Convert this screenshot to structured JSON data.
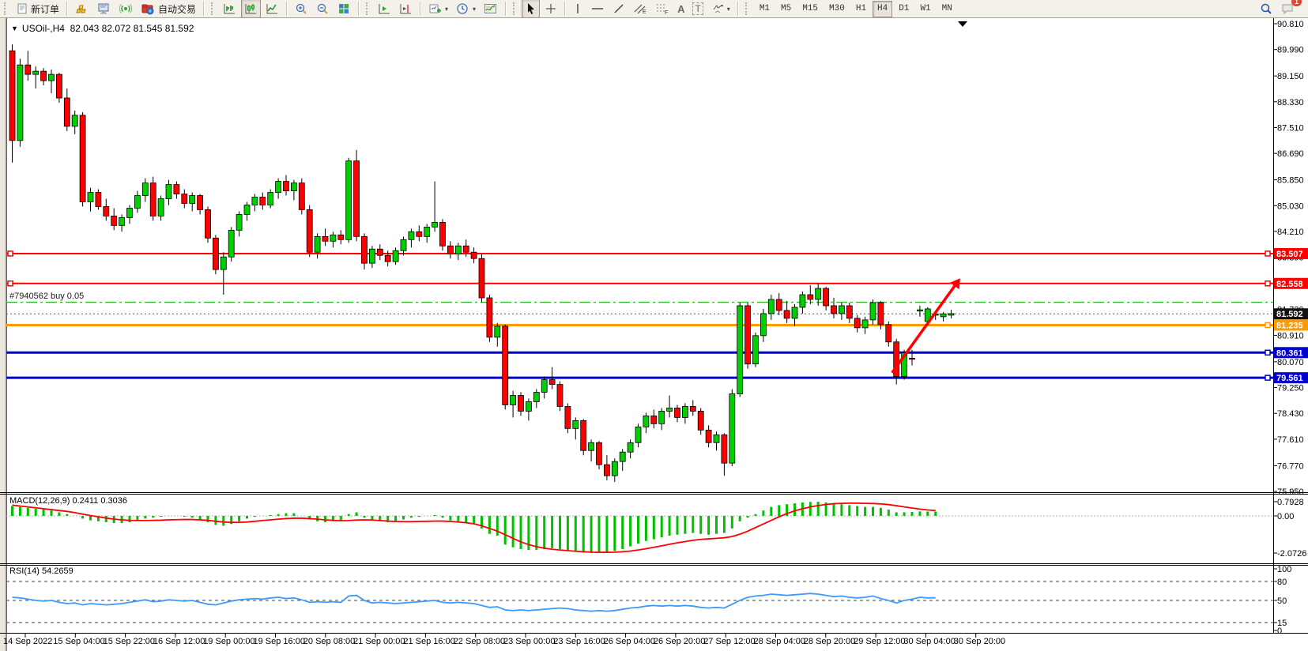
{
  "toolbar": {
    "new_order_label": "新订单",
    "autotrade_label": "自动交易",
    "timeframes": [
      "M1",
      "M5",
      "M15",
      "M30",
      "H1",
      "H4",
      "D1",
      "W1",
      "MN"
    ],
    "active_timeframe": "H4",
    "notification_badge": "1",
    "channel_letter": "E",
    "fibo_letter": "F",
    "text_tool_label": "A",
    "label_tool_label": "T"
  },
  "chart": {
    "symbol_period": "USOil-,H4",
    "ohlc_text": "82.043 82.072 81.545 81.592",
    "trade_label": "#7940562 buy 0.05",
    "macd_label": "MACD(12,26,9) 0.2411 0.3036",
    "rsi_label": "RSI(14) 54.2659",
    "shift_marker": "▼"
  },
  "chart_data": [
    {
      "type": "candlestick",
      "title": "USOil-,H4",
      "last_ohlc": {
        "open": 82.043,
        "high": 82.072,
        "low": 81.545,
        "close": 81.592
      },
      "ylim": [
        75.53,
        91.0
      ],
      "yticks": [
        "90.810",
        "89.990",
        "89.150",
        "88.330",
        "87.510",
        "86.690",
        "85.850",
        "85.030",
        "84.210",
        "83.390",
        "81.730",
        "80.910",
        "80.070",
        "79.250",
        "78.430",
        "77.610",
        "76.770",
        "75.950"
      ],
      "price_labels": [
        {
          "text": "83.507",
          "bg": "#ff0000"
        },
        {
          "text": "82.558",
          "bg": "#ff0000"
        },
        {
          "text": "81.592",
          "bg": "#111111"
        },
        {
          "text": "81.235",
          "bg": "#ff9900"
        },
        {
          "text": "80.361",
          "bg": "#0000cc"
        },
        {
          "text": "79.561",
          "bg": "#0000cc"
        }
      ],
      "hlines": [
        {
          "price": 83.507,
          "color": "#ff0000",
          "w": 2,
          "sq_left": true,
          "sq_right": true
        },
        {
          "price": 82.558,
          "color": "#ff0000",
          "w": 2,
          "sq_left": true,
          "sq_right": true
        },
        {
          "price": 81.235,
          "color": "#ff9900",
          "w": 3,
          "sq_left": false,
          "sq_right": true
        },
        {
          "price": 80.361,
          "color": "#0000cc",
          "w": 3,
          "sq_left": false,
          "sq_right": true
        },
        {
          "price": 79.561,
          "color": "#0000cc",
          "w": 3,
          "sq_left": false,
          "sq_right": true
        }
      ],
      "bid_line": {
        "price": 81.592,
        "color": "#555555",
        "style": "dash"
      },
      "buy_line": {
        "price": 81.96,
        "color": "#2db52d",
        "style": "dashdot",
        "label": "#7940562 buy 0.05"
      },
      "up_color": "#00d000",
      "down_color": "#ff0000",
      "outline_color": "#000000",
      "arrow": {
        "from_i": 112.8,
        "from_p": 79.72,
        "to_i": 121.5,
        "to_p": 82.72,
        "color": "#ff0000"
      },
      "x_labels": [
        "14 Sep 2022",
        "15 Sep 04:00",
        "15 Sep 22:00",
        "16 Sep 12:00",
        "19 Sep 00:00",
        "19 Sep 16:00",
        "20 Sep 08:00",
        "21 Sep 00:00",
        "21 Sep 16:00",
        "22 Sep 08:00",
        "23 Sep 00:00",
        "23 Sep 16:00",
        "26 Sep 04:00",
        "26 Sep 20:00",
        "27 Sep 12:00",
        "28 Sep 04:00",
        "28 Sep 20:00",
        "29 Sep 12:00",
        "30 Sep 04:00",
        "30 Sep 20:00"
      ],
      "candles": [
        [
          89.95,
          90.15,
          86.4,
          87.1
        ],
        [
          87.1,
          89.7,
          86.9,
          89.5
        ],
        [
          89.5,
          89.95,
          89.0,
          89.2
        ],
        [
          89.2,
          89.45,
          88.75,
          89.3
        ],
        [
          89.3,
          89.4,
          88.85,
          89.0
        ],
        [
          89.0,
          89.35,
          88.6,
          89.2
        ],
        [
          89.2,
          89.25,
          88.3,
          88.45
        ],
        [
          88.45,
          88.75,
          87.4,
          87.55
        ],
        [
          87.55,
          88.05,
          87.3,
          87.9
        ],
        [
          87.9,
          88.0,
          85.0,
          85.15
        ],
        [
          85.15,
          85.6,
          84.85,
          85.45
        ],
        [
          85.45,
          85.55,
          84.9,
          85.0
        ],
        [
          85.0,
          85.25,
          84.55,
          84.7
        ],
        [
          84.7,
          84.95,
          84.25,
          84.4
        ],
        [
          84.4,
          84.75,
          84.2,
          84.65
        ],
        [
          84.65,
          85.05,
          84.45,
          84.95
        ],
        [
          84.95,
          85.5,
          84.8,
          85.35
        ],
        [
          85.35,
          85.9,
          85.15,
          85.75
        ],
        [
          85.75,
          85.95,
          84.55,
          84.7
        ],
        [
          84.7,
          85.35,
          84.55,
          85.25
        ],
        [
          85.25,
          85.85,
          85.05,
          85.7
        ],
        [
          85.7,
          85.8,
          85.25,
          85.4
        ],
        [
          85.4,
          85.55,
          84.95,
          85.1
        ],
        [
          85.1,
          85.45,
          84.85,
          85.35
        ],
        [
          85.35,
          85.4,
          84.75,
          84.9
        ],
        [
          84.9,
          85.0,
          83.85,
          84.0
        ],
        [
          84.0,
          84.1,
          82.85,
          83.0
        ],
        [
          83.0,
          83.55,
          82.2,
          83.4
        ],
        [
          83.4,
          84.35,
          83.25,
          84.25
        ],
        [
          84.25,
          84.85,
          84.05,
          84.75
        ],
        [
          84.75,
          85.15,
          84.55,
          85.05
        ],
        [
          85.05,
          85.4,
          84.85,
          85.3
        ],
        [
          85.3,
          85.45,
          84.9,
          85.05
        ],
        [
          85.05,
          85.55,
          84.95,
          85.45
        ],
        [
          85.45,
          85.9,
          85.25,
          85.8
        ],
        [
          85.8,
          86.0,
          85.35,
          85.5
        ],
        [
          85.5,
          85.85,
          85.2,
          85.75
        ],
        [
          85.75,
          85.9,
          84.75,
          84.9
        ],
        [
          84.9,
          85.05,
          83.4,
          83.55
        ],
        [
          83.55,
          84.15,
          83.35,
          84.05
        ],
        [
          84.05,
          84.3,
          83.75,
          83.9
        ],
        [
          83.9,
          84.2,
          83.7,
          84.1
        ],
        [
          84.1,
          84.25,
          83.8,
          83.95
        ],
        [
          83.95,
          86.55,
          83.85,
          86.45
        ],
        [
          86.45,
          86.8,
          83.9,
          84.05
        ],
        [
          84.05,
          84.15,
          83.0,
          83.2
        ],
        [
          83.2,
          83.75,
          83.05,
          83.65
        ],
        [
          83.65,
          83.8,
          83.3,
          83.45
        ],
        [
          83.45,
          83.6,
          83.1,
          83.25
        ],
        [
          83.25,
          83.7,
          83.15,
          83.6
        ],
        [
          83.6,
          84.05,
          83.45,
          83.95
        ],
        [
          83.95,
          84.3,
          83.7,
          84.2
        ],
        [
          84.2,
          84.4,
          83.9,
          84.05
        ],
        [
          84.05,
          84.45,
          83.85,
          84.35
        ],
        [
          84.35,
          85.8,
          84.2,
          84.5
        ],
        [
          84.5,
          84.6,
          83.6,
          83.75
        ],
        [
          83.75,
          83.9,
          83.35,
          83.5
        ],
        [
          83.5,
          83.85,
          83.3,
          83.75
        ],
        [
          83.75,
          83.95,
          83.4,
          83.55
        ],
        [
          83.55,
          83.7,
          83.2,
          83.35
        ],
        [
          83.35,
          83.5,
          81.95,
          82.1
        ],
        [
          82.1,
          82.2,
          80.7,
          80.85
        ],
        [
          80.85,
          81.3,
          80.55,
          81.2
        ],
        [
          81.2,
          81.25,
          78.55,
          78.7
        ],
        [
          78.7,
          79.15,
          78.3,
          79.0
        ],
        [
          79.0,
          79.1,
          78.35,
          78.5
        ],
        [
          78.5,
          78.9,
          78.2,
          78.8
        ],
        [
          78.8,
          79.2,
          78.6,
          79.1
        ],
        [
          79.1,
          79.6,
          78.9,
          79.5
        ],
        [
          79.5,
          79.9,
          79.2,
          79.35
        ],
        [
          79.35,
          79.45,
          78.5,
          78.65
        ],
        [
          78.65,
          78.75,
          77.8,
          77.95
        ],
        [
          77.95,
          78.3,
          77.6,
          78.2
        ],
        [
          78.2,
          78.25,
          77.1,
          77.25
        ],
        [
          77.25,
          77.6,
          76.9,
          77.5
        ],
        [
          77.5,
          77.55,
          76.65,
          76.8
        ],
        [
          76.8,
          77.1,
          76.3,
          76.45
        ],
        [
          76.45,
          77.0,
          76.25,
          76.9
        ],
        [
          76.9,
          77.3,
          76.6,
          77.2
        ],
        [
          77.2,
          77.6,
          77.0,
          77.5
        ],
        [
          77.5,
          78.1,
          77.35,
          78.0
        ],
        [
          78.0,
          78.45,
          77.8,
          78.35
        ],
        [
          78.35,
          78.55,
          77.95,
          78.1
        ],
        [
          78.1,
          78.6,
          77.9,
          78.5
        ],
        [
          78.5,
          79.0,
          78.3,
          78.6
        ],
        [
          78.6,
          78.7,
          78.15,
          78.3
        ],
        [
          78.3,
          78.75,
          78.1,
          78.65
        ],
        [
          78.65,
          78.85,
          78.35,
          78.5
        ],
        [
          78.5,
          78.6,
          77.75,
          77.9
        ],
        [
          77.9,
          78.05,
          77.35,
          77.5
        ],
        [
          77.5,
          77.85,
          77.25,
          77.75
        ],
        [
          77.75,
          77.8,
          76.45,
          76.85
        ],
        [
          76.85,
          79.2,
          76.75,
          79.05
        ],
        [
          79.05,
          81.95,
          78.95,
          81.85
        ],
        [
          81.85,
          81.95,
          79.85,
          80.0
        ],
        [
          80.0,
          81.0,
          79.9,
          80.9
        ],
        [
          80.9,
          81.75,
          80.7,
          81.6
        ],
        [
          81.6,
          82.2,
          81.4,
          82.05
        ],
        [
          82.05,
          82.25,
          81.55,
          81.7
        ],
        [
          81.7,
          82.0,
          81.3,
          81.45
        ],
        [
          81.45,
          81.9,
          81.2,
          81.8
        ],
        [
          81.8,
          82.3,
          81.6,
          82.2
        ],
        [
          82.2,
          82.5,
          81.9,
          82.05
        ],
        [
          82.05,
          82.55,
          81.85,
          82.4
        ],
        [
          82.4,
          82.45,
          81.7,
          81.85
        ],
        [
          81.85,
          82.1,
          81.45,
          81.6
        ],
        [
          81.6,
          81.95,
          81.4,
          81.85
        ],
        [
          81.85,
          81.95,
          81.3,
          81.45
        ],
        [
          81.45,
          81.55,
          81.0,
          81.15
        ],
        [
          81.15,
          81.5,
          80.95,
          81.4
        ],
        [
          81.4,
          82.05,
          81.25,
          81.95
        ],
        [
          81.95,
          82.0,
          81.1,
          81.25
        ],
        [
          81.25,
          81.35,
          80.55,
          80.7
        ],
        [
          80.7,
          80.8,
          79.35,
          79.6
        ],
        [
          79.6,
          80.45,
          79.5,
          80.35
        ],
        [
          80.18,
          80.45,
          79.95,
          80.15
        ],
        [
          81.68,
          81.85,
          81.5,
          81.72
        ],
        [
          81.35,
          81.8,
          81.3,
          81.75
        ],
        [
          81.55,
          81.7,
          81.4,
          81.59
        ],
        [
          81.5,
          81.65,
          81.35,
          81.592
        ],
        [
          81.55,
          81.72,
          81.45,
          81.6
        ]
      ]
    },
    {
      "type": "macd_histogram",
      "label": "MACD(12,26,9) 0.2411 0.3036",
      "values": {
        "macd": 0.2411,
        "signal": 0.3036
      },
      "yticks": [
        {
          "v": 0.7928,
          "text": "0.7928"
        },
        {
          "v": 0.0,
          "text": "0.00"
        },
        {
          "v": -2.0726,
          "text": "-2.0726"
        }
      ],
      "hist_color": "#00c000",
      "signal_color": "#ff0000",
      "hist": [
        0.55,
        0.5,
        0.45,
        0.4,
        0.35,
        0.3,
        0.2,
        0.1,
        0.0,
        -0.15,
        -0.25,
        -0.3,
        -0.35,
        -0.4,
        -0.4,
        -0.35,
        -0.25,
        -0.15,
        -0.1,
        -0.05,
        0.0,
        0.0,
        -0.05,
        -0.1,
        -0.2,
        -0.35,
        -0.5,
        -0.55,
        -0.45,
        -0.3,
        -0.15,
        -0.05,
        0.0,
        0.05,
        0.1,
        0.15,
        0.15,
        0.0,
        -0.2,
        -0.3,
        -0.35,
        -0.3,
        -0.25,
        0.1,
        0.2,
        -0.1,
        -0.25,
        -0.3,
        -0.35,
        -0.3,
        -0.2,
        -0.1,
        -0.05,
        0.0,
        0.05,
        -0.1,
        -0.25,
        -0.3,
        -0.35,
        -0.45,
        -0.7,
        -1.0,
        -1.1,
        -1.6,
        -1.75,
        -1.85,
        -1.9,
        -1.9,
        -1.85,
        -1.8,
        -1.85,
        -1.95,
        -2.0,
        -2.05,
        -2.07,
        -2.05,
        -2.0,
        -1.95,
        -1.85,
        -1.7,
        -1.55,
        -1.4,
        -1.3,
        -1.2,
        -1.1,
        -1.05,
        -1.0,
        -0.95,
        -1.0,
        -1.05,
        -1.0,
        -0.95,
        -0.7,
        -0.3,
        -0.1,
        0.1,
        0.3,
        0.5,
        0.6,
        0.65,
        0.7,
        0.75,
        0.78,
        0.79,
        0.75,
        0.7,
        0.65,
        0.6,
        0.55,
        0.5,
        0.5,
        0.45,
        0.35,
        0.2,
        0.2,
        0.22,
        0.25,
        0.24,
        0.24
      ],
      "signal": [
        0.6,
        0.55,
        0.5,
        0.45,
        0.4,
        0.35,
        0.3,
        0.25,
        0.18,
        0.1,
        0.02,
        -0.05,
        -0.12,
        -0.18,
        -0.22,
        -0.25,
        -0.26,
        -0.26,
        -0.25,
        -0.24,
        -0.22,
        -0.21,
        -0.2,
        -0.2,
        -0.22,
        -0.25,
        -0.3,
        -0.34,
        -0.36,
        -0.36,
        -0.34,
        -0.3,
        -0.26,
        -0.22,
        -0.18,
        -0.15,
        -0.13,
        -0.13,
        -0.15,
        -0.18,
        -0.22,
        -0.25,
        -0.27,
        -0.26,
        -0.23,
        -0.22,
        -0.23,
        -0.26,
        -0.29,
        -0.31,
        -0.32,
        -0.32,
        -0.31,
        -0.3,
        -0.29,
        -0.29,
        -0.31,
        -0.34,
        -0.38,
        -0.44,
        -0.55,
        -0.7,
        -0.85,
        -1.05,
        -1.25,
        -1.45,
        -1.6,
        -1.72,
        -1.8,
        -1.86,
        -1.9,
        -1.94,
        -1.97,
        -2.0,
        -2.02,
        -2.03,
        -2.03,
        -2.02,
        -2.0,
        -1.96,
        -1.9,
        -1.83,
        -1.75,
        -1.67,
        -1.58,
        -1.5,
        -1.43,
        -1.36,
        -1.31,
        -1.28,
        -1.25,
        -1.22,
        -1.15,
        -1.02,
        -0.85,
        -0.65,
        -0.45,
        -0.25,
        -0.05,
        0.13,
        0.28,
        0.4,
        0.5,
        0.58,
        0.64,
        0.68,
        0.7,
        0.71,
        0.71,
        0.7,
        0.69,
        0.67,
        0.63,
        0.57,
        0.5,
        0.44,
        0.38,
        0.33,
        0.3
      ]
    },
    {
      "type": "rsi_line",
      "label": "RSI(14) 54.2659",
      "value": 54.2659,
      "yticks": [
        {
          "v": 100,
          "text": "100"
        },
        {
          "v": 80,
          "text": "80"
        },
        {
          "v": 50,
          "text": "50"
        },
        {
          "v": 15,
          "text": "15"
        },
        {
          "v": 0,
          "text": "0"
        }
      ],
      "levels": [
        80,
        50,
        15
      ],
      "color": "#3d9bff",
      "series": [
        55,
        54,
        52,
        50,
        49,
        50,
        47,
        45,
        46,
        43,
        45,
        44,
        43,
        44,
        45,
        47,
        49,
        51,
        48,
        49,
        51,
        50,
        49,
        50,
        47,
        44,
        43,
        46,
        49,
        51,
        52,
        53,
        52,
        54,
        55,
        53,
        54,
        51,
        47,
        48,
        47,
        48,
        47,
        57,
        58,
        50,
        46,
        47,
        46,
        45,
        46,
        47,
        48,
        49,
        50,
        47,
        46,
        47,
        46,
        45,
        42,
        39,
        40,
        35,
        34,
        35,
        34,
        35,
        36,
        37,
        38,
        37,
        35,
        34,
        33,
        34,
        33,
        34,
        36,
        38,
        39,
        41,
        42,
        41,
        42,
        41,
        42,
        41,
        39,
        38,
        39,
        38,
        44,
        50,
        55,
        57,
        58,
        60,
        59,
        58,
        59,
        60,
        61,
        60,
        58,
        56,
        57,
        55,
        54,
        55,
        57,
        53,
        50,
        46,
        50,
        52,
        55,
        54,
        54.27
      ]
    }
  ]
}
